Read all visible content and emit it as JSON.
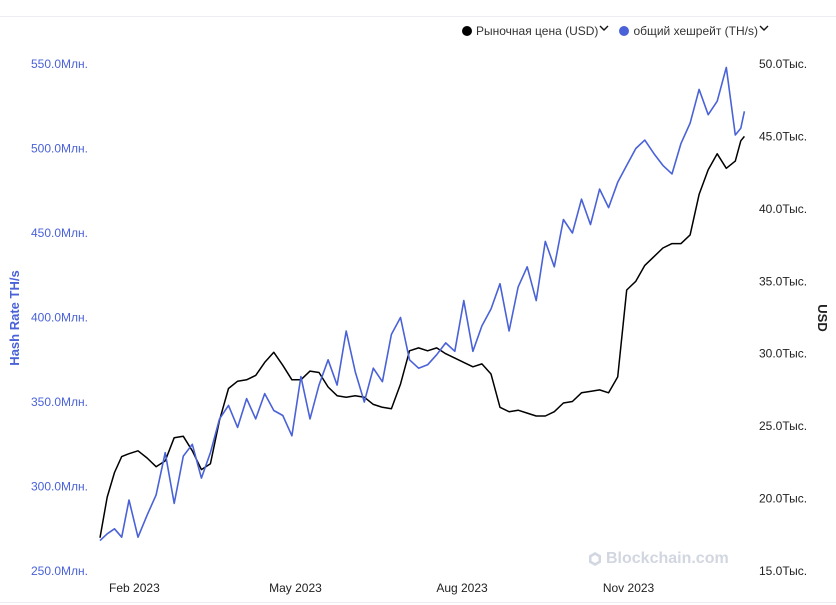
{
  "legend": {
    "price_label": "Рыночная цена (USD)",
    "hash_label": "общий хешрейт (TH/s)"
  },
  "watermark": "Blockchain.com",
  "chart_data": {
    "type": "line",
    "x_ticks": [
      "Feb 2023",
      "May 2023",
      "Aug 2023",
      "Nov 2023"
    ],
    "x_tick_dates": [
      "2023-02-01",
      "2023-05-01",
      "2023-08-01",
      "2023-11-01"
    ],
    "x_range": [
      "2023-01-13",
      "2024-01-06"
    ],
    "y_left": {
      "label": "Hash Rate TH/s",
      "ticks": [
        "250.0Млн.",
        "300.0Млн.",
        "350.0Млн.",
        "400.0Млн.",
        "450.0Млн.",
        "500.0Млн.",
        "550.0Млн."
      ],
      "range": [
        250000000,
        550000000
      ],
      "color": "#4a62d8"
    },
    "y_right": {
      "label": "USD",
      "ticks": [
        "15.0Тыс.",
        "20.0Тыс.",
        "25.0Тыс.",
        "30.0Тыс.",
        "35.0Тыс.",
        "40.0Тыс.",
        "45.0Тыс.",
        "50.0Тыс."
      ],
      "range": [
        15000,
        50000
      ],
      "color": "#222222"
    },
    "grid": false,
    "legend_position": "top-right",
    "series": [
      {
        "name": "Рыночная цена (USD)",
        "axis": "right",
        "color": "#000000",
        "x": [
          "2023-01-13",
          "2023-01-17",
          "2023-01-21",
          "2023-01-25",
          "2023-01-29",
          "2023-02-03",
          "2023-02-08",
          "2023-02-13",
          "2023-02-18",
          "2023-02-23",
          "2023-02-28",
          "2023-03-05",
          "2023-03-10",
          "2023-03-15",
          "2023-03-20",
          "2023-03-25",
          "2023-03-30",
          "2023-04-04",
          "2023-04-09",
          "2023-04-14",
          "2023-04-19",
          "2023-04-24",
          "2023-04-29",
          "2023-05-04",
          "2023-05-09",
          "2023-05-14",
          "2023-05-19",
          "2023-05-24",
          "2023-05-29",
          "2023-06-03",
          "2023-06-08",
          "2023-06-13",
          "2023-06-18",
          "2023-06-23",
          "2023-06-28",
          "2023-07-03",
          "2023-07-08",
          "2023-07-13",
          "2023-07-18",
          "2023-07-23",
          "2023-07-28",
          "2023-08-02",
          "2023-08-07",
          "2023-08-12",
          "2023-08-17",
          "2023-08-22",
          "2023-08-27",
          "2023-09-01",
          "2023-09-06",
          "2023-09-11",
          "2023-09-16",
          "2023-09-21",
          "2023-09-26",
          "2023-10-01",
          "2023-10-06",
          "2023-10-11",
          "2023-10-16",
          "2023-10-21",
          "2023-10-26",
          "2023-10-31",
          "2023-11-05",
          "2023-11-10",
          "2023-11-15",
          "2023-11-20",
          "2023-11-25",
          "2023-11-30",
          "2023-12-05",
          "2023-12-10",
          "2023-12-15",
          "2023-12-20",
          "2023-12-25",
          "2023-12-30",
          "2024-01-02",
          "2024-01-04"
        ],
        "values": [
          17300,
          20100,
          21800,
          22900,
          23100,
          23300,
          22800,
          22200,
          22600,
          24200,
          24300,
          23300,
          22000,
          22400,
          25400,
          27600,
          28100,
          28200,
          28500,
          29400,
          30100,
          29200,
          28200,
          28200,
          28800,
          28700,
          27700,
          27100,
          27000,
          27100,
          27000,
          26500,
          26300,
          26200,
          27900,
          30200,
          30400,
          30200,
          30400,
          30000,
          29700,
          29400,
          29100,
          29300,
          28600,
          26300,
          26000,
          26100,
          25900,
          25700,
          25700,
          26000,
          26600,
          26700,
          27300,
          27400,
          27500,
          27300,
          28400,
          34400,
          35000,
          36100,
          36700,
          37300,
          37600,
          37600,
          38200,
          41000,
          42700,
          43800,
          42800,
          43300,
          44700,
          45000
        ]
      },
      {
        "name": "общий хешрейт (TH/s)",
        "axis": "left",
        "color": "#4a62d8",
        "x": [
          "2023-01-13",
          "2023-01-17",
          "2023-01-21",
          "2023-01-25",
          "2023-01-29",
          "2023-02-03",
          "2023-02-08",
          "2023-02-13",
          "2023-02-18",
          "2023-02-23",
          "2023-02-28",
          "2023-03-05",
          "2023-03-10",
          "2023-03-15",
          "2023-03-20",
          "2023-03-25",
          "2023-03-30",
          "2023-04-04",
          "2023-04-09",
          "2023-04-14",
          "2023-04-19",
          "2023-04-24",
          "2023-04-29",
          "2023-05-04",
          "2023-05-09",
          "2023-05-14",
          "2023-05-19",
          "2023-05-24",
          "2023-05-29",
          "2023-06-03",
          "2023-06-08",
          "2023-06-13",
          "2023-06-18",
          "2023-06-23",
          "2023-06-28",
          "2023-07-03",
          "2023-07-08",
          "2023-07-13",
          "2023-07-18",
          "2023-07-23",
          "2023-07-28",
          "2023-08-02",
          "2023-08-07",
          "2023-08-12",
          "2023-08-17",
          "2023-08-22",
          "2023-08-27",
          "2023-09-01",
          "2023-09-06",
          "2023-09-11",
          "2023-09-16",
          "2023-09-21",
          "2023-09-26",
          "2023-10-01",
          "2023-10-06",
          "2023-10-11",
          "2023-10-16",
          "2023-10-21",
          "2023-10-26",
          "2023-10-31",
          "2023-11-05",
          "2023-11-10",
          "2023-11-15",
          "2023-11-20",
          "2023-11-25",
          "2023-11-30",
          "2023-12-05",
          "2023-12-10",
          "2023-12-15",
          "2023-12-20",
          "2023-12-25",
          "2023-12-30",
          "2024-01-02",
          "2024-01-04"
        ],
        "values": [
          268000000,
          272000000,
          275000000,
          270000000,
          292000000,
          270000000,
          283000000,
          295000000,
          320000000,
          290000000,
          318000000,
          325000000,
          305000000,
          320000000,
          340000000,
          348000000,
          335000000,
          352000000,
          340000000,
          355000000,
          345000000,
          342000000,
          330000000,
          365000000,
          340000000,
          360000000,
          375000000,
          360000000,
          392000000,
          368000000,
          350000000,
          370000000,
          362000000,
          390000000,
          400000000,
          375000000,
          370000000,
          372000000,
          378000000,
          385000000,
          380000000,
          410000000,
          380000000,
          395000000,
          405000000,
          420000000,
          392000000,
          418000000,
          430000000,
          410000000,
          445000000,
          430000000,
          458000000,
          450000000,
          470000000,
          455000000,
          476000000,
          465000000,
          480000000,
          490000000,
          500000000,
          505000000,
          497000000,
          490000000,
          485000000,
          503000000,
          515000000,
          535000000,
          520000000,
          528000000,
          548000000,
          508000000,
          512000000,
          522000000
        ]
      }
    ]
  }
}
